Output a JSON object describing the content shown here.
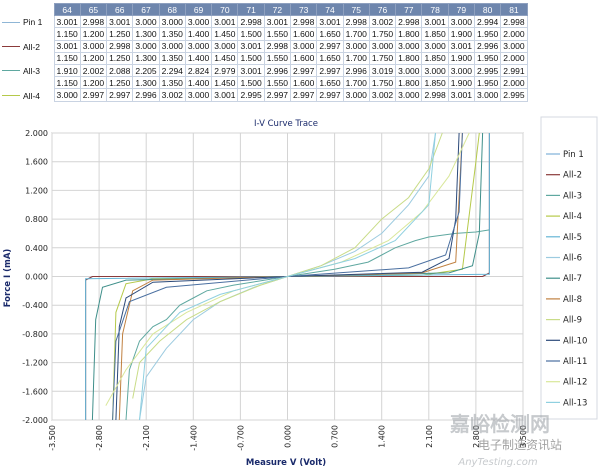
{
  "table": {
    "columns": [
      "64",
      "65",
      "66",
      "67",
      "68",
      "69",
      "70",
      "71",
      "72",
      "73",
      "74",
      "75",
      "76",
      "77",
      "78",
      "79",
      "80",
      "81"
    ],
    "rows": [
      {
        "label": "Pin 1",
        "color": "#8fb6d6",
        "values": [
          "3.001",
          "2.998",
          "3.001",
          "3.000",
          "3.000",
          "3.000",
          "3.001",
          "2.998",
          "3.001",
          "2.998",
          "3.001",
          "2.998",
          "3.002",
          "2.998",
          "3.001",
          "3.000",
          "2.994",
          "2.998"
        ]
      },
      {
        "label": "",
        "color": "",
        "values": [
          "1.150",
          "1.200",
          "1.250",
          "1.300",
          "1.350",
          "1.400",
          "1.450",
          "1.500",
          "1.550",
          "1.600",
          "1.650",
          "1.700",
          "1.750",
          "1.800",
          "1.850",
          "1.900",
          "1.950",
          "2.000"
        ]
      },
      {
        "label": "All-2",
        "color": "#8b3a3a",
        "values": [
          "3.001",
          "3.000",
          "2.998",
          "3.000",
          "3.000",
          "3.000",
          "3.000",
          "3.001",
          "2.998",
          "3.000",
          "2.997",
          "3.000",
          "3.000",
          "3.000",
          "3.000",
          "3.001",
          "2.996",
          "3.000"
        ]
      },
      {
        "label": "",
        "color": "",
        "values": [
          "1.150",
          "1.200",
          "1.250",
          "1.300",
          "1.350",
          "1.400",
          "1.450",
          "1.500",
          "1.550",
          "1.600",
          "1.650",
          "1.700",
          "1.750",
          "1.800",
          "1.850",
          "1.900",
          "1.950",
          "2.000"
        ]
      },
      {
        "label": "All-3",
        "color": "#5fa8a0",
        "values": [
          "1.910",
          "2.002",
          "2.088",
          "2.205",
          "2.294",
          "2.824",
          "2.979",
          "3.001",
          "2.996",
          "2.997",
          "2.997",
          "2.996",
          "3.019",
          "3.000",
          "3.000",
          "3.000",
          "2.995",
          "2.991"
        ]
      },
      {
        "label": "",
        "color": "",
        "values": [
          "1.150",
          "1.200",
          "1.250",
          "1.300",
          "1.350",
          "1.400",
          "1.450",
          "1.500",
          "1.550",
          "1.600",
          "1.650",
          "1.700",
          "1.750",
          "1.800",
          "1.850",
          "1.900",
          "1.950",
          "2.000"
        ]
      },
      {
        "label": "All-4",
        "color": "#b5c94a",
        "values": [
          "3.000",
          "2.997",
          "2.997",
          "2.996",
          "3.002",
          "3.000",
          "3.001",
          "2.995",
          "2.997",
          "2.997",
          "2.997",
          "3.000",
          "3.002",
          "3.000",
          "2.998",
          "3.001",
          "3.000",
          "2.995"
        ]
      }
    ]
  },
  "chart_data": {
    "type": "line",
    "title": "I-V Curve Trace",
    "xlabel": "Measure V (Volt)",
    "ylabel": "Force I (mA)",
    "xlim": [
      -3.5,
      3.5
    ],
    "ylim": [
      -2.0,
      2.0
    ],
    "x_ticks": [
      "-3.500",
      "-2.800",
      "-2.100",
      "-1.400",
      "-0.700",
      "0.000",
      "0.700",
      "1.400",
      "2.100",
      "2.800",
      "3.500"
    ],
    "y_ticks": [
      "2.000",
      "1.600",
      "1.200",
      "0.800",
      "0.400",
      "0.000",
      "-0.400",
      "-0.800",
      "-1.200",
      "-1.600",
      "-2.000"
    ],
    "grid": true,
    "legend_position": "right",
    "series": [
      {
        "name": "Pin 1",
        "color": "#7fb0d8",
        "points": [
          [
            -3.0,
            -2.0
          ],
          [
            -3.0,
            -0.05
          ],
          [
            -2.9,
            0.0
          ],
          [
            0,
            0
          ],
          [
            2.9,
            0.0
          ],
          [
            3.0,
            0.05
          ],
          [
            3.0,
            2.0
          ]
        ]
      },
      {
        "name": "All-2",
        "color": "#8b3a3a",
        "points": [
          [
            -3.0,
            -2.0
          ],
          [
            -3.0,
            -0.05
          ],
          [
            -2.9,
            0.0
          ],
          [
            0,
            0
          ],
          [
            2.9,
            0.0
          ],
          [
            3.0,
            0.05
          ],
          [
            3.0,
            2.0
          ]
        ]
      },
      {
        "name": "All-3",
        "color": "#5fa8a0",
        "points": [
          [
            -2.4,
            -2.0
          ],
          [
            -2.35,
            -1.3
          ],
          [
            -2.2,
            -0.9
          ],
          [
            -2.0,
            -0.7
          ],
          [
            -1.8,
            -0.6
          ],
          [
            -1.6,
            -0.4
          ],
          [
            -1.4,
            -0.3
          ],
          [
            -1.2,
            -0.2
          ],
          [
            -0.8,
            -0.12
          ],
          [
            0,
            0
          ],
          [
            0.7,
            0.1
          ],
          [
            1.2,
            0.2
          ],
          [
            1.4,
            0.3
          ],
          [
            1.6,
            0.4
          ],
          [
            1.9,
            0.5
          ],
          [
            2.1,
            0.55
          ],
          [
            2.5,
            0.6
          ],
          [
            2.8,
            0.62
          ],
          [
            3.0,
            0.65
          ]
        ]
      },
      {
        "name": "All-4",
        "color": "#b5c94a",
        "points": [
          [
            -2.6,
            -2.0
          ],
          [
            -2.55,
            -0.5
          ],
          [
            -2.4,
            -0.1
          ],
          [
            -2.0,
            -0.03
          ],
          [
            0,
            0
          ],
          [
            2.0,
            0.02
          ],
          [
            2.6,
            0.1
          ],
          [
            2.8,
            1.6
          ],
          [
            2.85,
            2.0
          ]
        ]
      },
      {
        "name": "All-5",
        "color": "#66b6d6",
        "points": [
          [
            -3.0,
            -2.0
          ],
          [
            -3.0,
            -0.03
          ],
          [
            0,
            0
          ],
          [
            3.0,
            0.03
          ],
          [
            3.0,
            2.0
          ]
        ]
      },
      {
        "name": "All-6",
        "color": "#9ccbe0",
        "points": [
          [
            -2.2,
            -2.0
          ],
          [
            -2.1,
            -1.4
          ],
          [
            -1.8,
            -1.0
          ],
          [
            -1.4,
            -0.6
          ],
          [
            -1.0,
            -0.35
          ],
          [
            -0.5,
            -0.15
          ],
          [
            0,
            0
          ],
          [
            0.5,
            0.15
          ],
          [
            1.0,
            0.35
          ],
          [
            1.4,
            0.6
          ],
          [
            1.8,
            1.0
          ],
          [
            2.1,
            1.4
          ],
          [
            2.2,
            2.0
          ]
        ]
      },
      {
        "name": "All-7",
        "color": "#3f8f8a",
        "points": [
          [
            -2.9,
            -2.0
          ],
          [
            -2.85,
            -0.6
          ],
          [
            -2.75,
            -0.15
          ],
          [
            -2.4,
            -0.05
          ],
          [
            0,
            0
          ],
          [
            2.4,
            0.05
          ],
          [
            2.75,
            0.15
          ],
          [
            2.85,
            0.6
          ],
          [
            2.9,
            2.0
          ]
        ]
      },
      {
        "name": "All-8",
        "color": "#c08040",
        "points": [
          [
            -2.5,
            -2.0
          ],
          [
            -2.45,
            -0.8
          ],
          [
            -2.3,
            -0.2
          ],
          [
            -2.0,
            -0.05
          ],
          [
            0,
            0
          ],
          [
            2.0,
            0.05
          ],
          [
            2.5,
            0.2
          ],
          [
            2.6,
            2.0
          ]
        ]
      },
      {
        "name": "All-9",
        "color": "#c9dc88",
        "points": [
          [
            -2.3,
            -1.7
          ],
          [
            -2.2,
            -1.2
          ],
          [
            -1.9,
            -0.9
          ],
          [
            -1.5,
            -0.6
          ],
          [
            -1.0,
            -0.35
          ],
          [
            -0.4,
            -0.12
          ],
          [
            0,
            0
          ],
          [
            0.5,
            0.15
          ],
          [
            1.0,
            0.4
          ],
          [
            1.4,
            0.8
          ],
          [
            1.8,
            1.1
          ],
          [
            2.1,
            1.5
          ],
          [
            2.3,
            2.0
          ]
        ]
      },
      {
        "name": "All-10",
        "color": "#2c4a7a",
        "points": [
          [
            -2.55,
            -2.0
          ],
          [
            -2.5,
            -0.7
          ],
          [
            -2.4,
            -0.3
          ],
          [
            -2.0,
            -0.08
          ],
          [
            0,
            0
          ],
          [
            2.0,
            0.06
          ],
          [
            2.4,
            0.25
          ],
          [
            2.5,
            0.8
          ],
          [
            2.55,
            2.0
          ]
        ]
      },
      {
        "name": "All-11",
        "color": "#4a6fa0",
        "points": [
          [
            -2.6,
            -2.0
          ],
          [
            -2.55,
            -0.9
          ],
          [
            -2.35,
            -0.35
          ],
          [
            -1.8,
            -0.15
          ],
          [
            0,
            0
          ],
          [
            1.8,
            0.12
          ],
          [
            2.35,
            0.3
          ],
          [
            2.55,
            0.9
          ],
          [
            2.6,
            2.0
          ]
        ]
      },
      {
        "name": "All-12",
        "color": "#d9e79a",
        "points": [
          [
            -2.7,
            -1.8
          ],
          [
            -2.4,
            -1.3
          ],
          [
            -2.0,
            -0.8
          ],
          [
            -1.5,
            -0.5
          ],
          [
            -0.8,
            -0.2
          ],
          [
            0,
            0
          ],
          [
            0.8,
            0.2
          ],
          [
            1.5,
            0.5
          ],
          [
            2.0,
            0.9
          ],
          [
            2.4,
            1.4
          ],
          [
            2.7,
            2.0
          ]
        ]
      },
      {
        "name": "All-13",
        "color": "#8fd0e0",
        "points": [
          [
            -2.2,
            -2.0
          ],
          [
            -2.1,
            -1.0
          ],
          [
            -1.6,
            -0.5
          ],
          [
            -1.0,
            -0.25
          ],
          [
            0,
            0
          ],
          [
            1.0,
            0.25
          ],
          [
            1.6,
            0.5
          ],
          [
            2.1,
            1.0
          ],
          [
            2.2,
            2.0
          ]
        ]
      }
    ]
  },
  "watermark": {
    "line1": "嘉峪检测网",
    "line2": "电子制造资讯站",
    "line3": "AnyTesting.com"
  }
}
